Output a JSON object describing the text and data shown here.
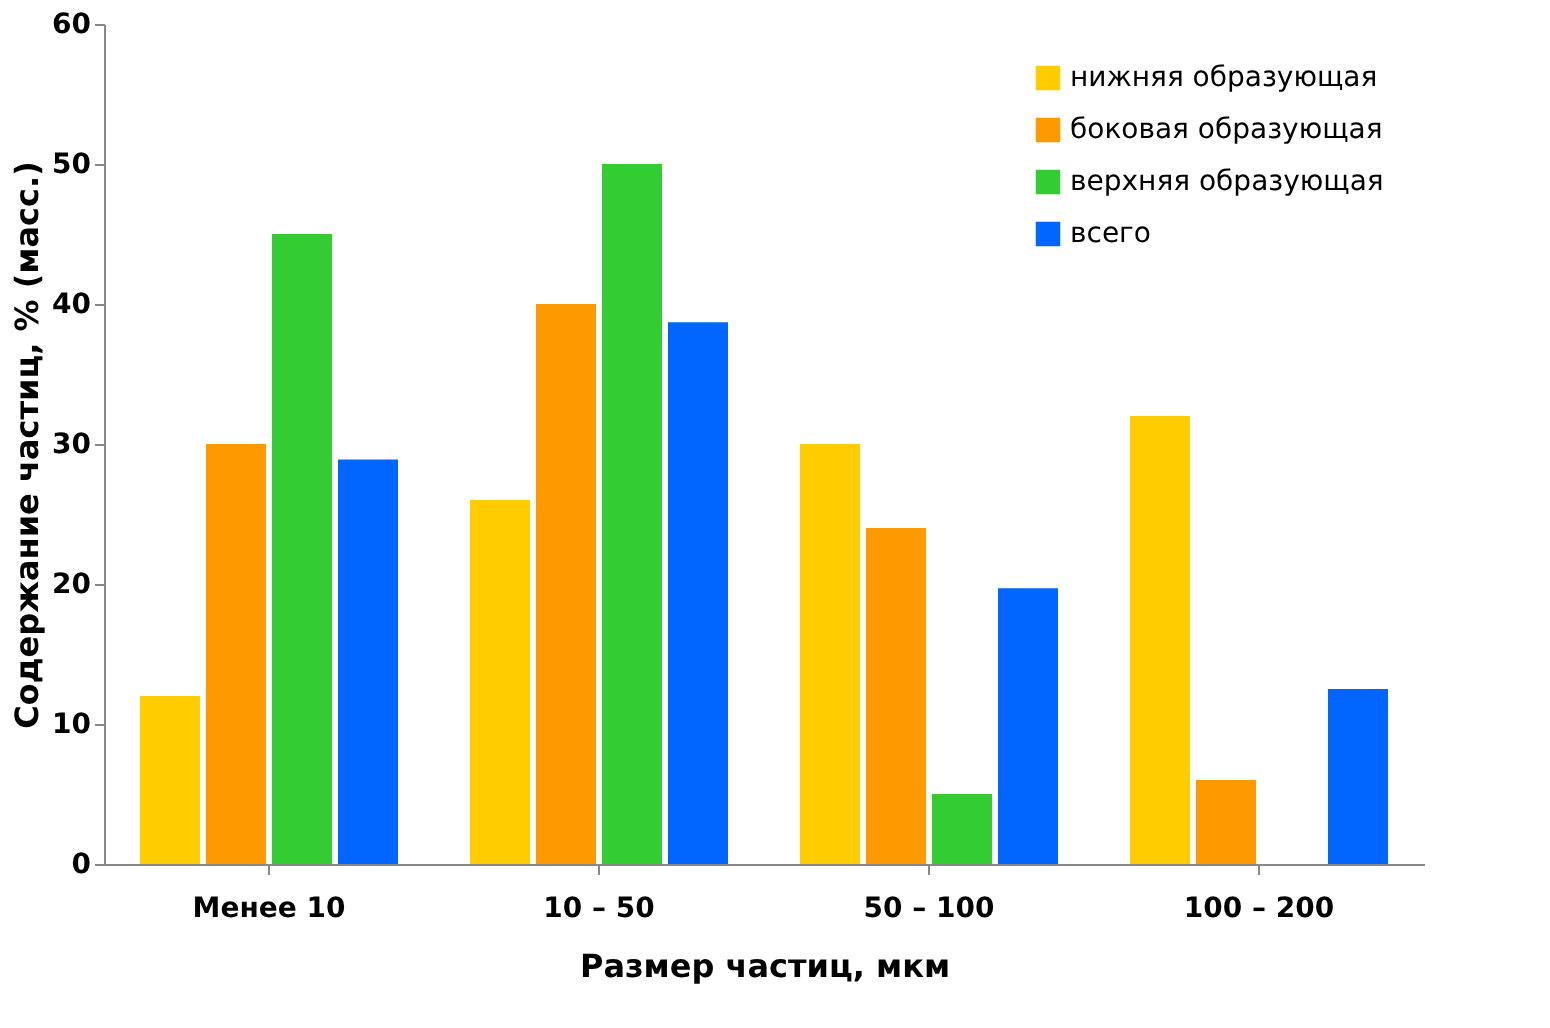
{
  "chart_data": {
    "type": "bar",
    "xlabel": "Размер частиц, мкм",
    "ylabel": "Содержание частиц, % (масс.)",
    "categories": [
      "Менее 10",
      "10 – 50",
      "50 – 100",
      "100 – 200"
    ],
    "series": [
      {
        "name": "нижняя образующая",
        "color": "#ffcc00",
        "values": [
          12,
          26,
          30,
          32
        ]
      },
      {
        "name": "боковая образующая",
        "color": "#ff9900",
        "values": [
          30,
          40,
          24,
          6
        ]
      },
      {
        "name": "верхняя образующая",
        "color": "#33cc33",
        "values": [
          45,
          50,
          5,
          null
        ]
      },
      {
        "name": "всего",
        "color": "#0066ff",
        "values": [
          28.9,
          38.7,
          19.7,
          12.5
        ]
      }
    ],
    "ylim": [
      0,
      60
    ],
    "yticks": [
      0,
      10,
      20,
      30,
      40,
      50,
      60
    ],
    "grid": false,
    "legend": "top right"
  }
}
